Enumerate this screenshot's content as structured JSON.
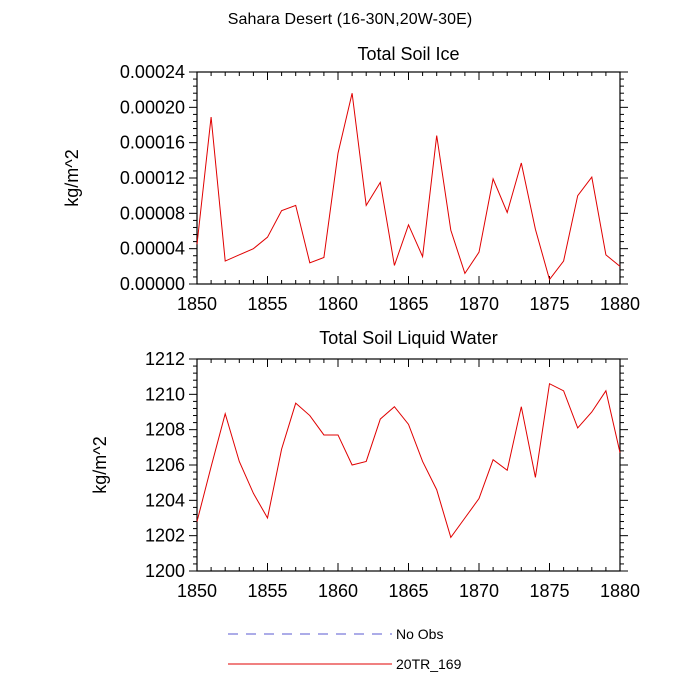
{
  "figure": {
    "title": "Sahara Desert (16-30N,20W-30E)"
  },
  "legend": {
    "items": [
      {
        "label": "No Obs",
        "color": "#5a5ad2",
        "style": "dashed"
      },
      {
        "label": "20TR_169",
        "color": "#e00000",
        "style": "solid"
      }
    ]
  },
  "chart_data": [
    {
      "type": "line",
      "title": "Total Soil Ice",
      "xlabel": "",
      "ylabel": "kg/m^2",
      "xlim": [
        1850,
        1880
      ],
      "ylim": [
        0,
        0.00024
      ],
      "xticks": [
        1850,
        1855,
        1860,
        1865,
        1870,
        1875,
        1880
      ],
      "xtick_labels": [
        "1850",
        "1855",
        "1860",
        "1865",
        "1870",
        "1875",
        "1880"
      ],
      "yticks": [
        0,
        4e-05,
        8e-05,
        0.00012,
        0.00016,
        0.0002,
        0.00024
      ],
      "ytick_labels": [
        "0.00000",
        "0.00004",
        "0.00008",
        "0.00012",
        "0.00016",
        "0.00020",
        "0.00024"
      ],
      "grid": false,
      "series": [
        {
          "name": "20TR_169",
          "color": "#e00000",
          "x": [
            1850,
            1851,
            1852,
            1853,
            1854,
            1855,
            1856,
            1857,
            1858,
            1859,
            1860,
            1861,
            1862,
            1863,
            1864,
            1865,
            1866,
            1867,
            1868,
            1869,
            1870,
            1871,
            1872,
            1873,
            1874,
            1875,
            1876,
            1877,
            1878,
            1879,
            1880
          ],
          "values": [
            4.5e-05,
            0.000189,
            2.6e-05,
            3.3e-05,
            4e-05,
            5.3e-05,
            8.3e-05,
            8.9e-05,
            2.4e-05,
            3e-05,
            0.000148,
            0.000216,
            8.9e-05,
            0.000115,
            2.1e-05,
            6.7e-05,
            3.1e-05,
            0.000168,
            6.1e-05,
            1.2e-05,
            3.6e-05,
            0.000119,
            8.1e-05,
            0.000137,
            6.2e-05,
            5e-06,
            2.6e-05,
            0.0001,
            0.000121,
            3.3e-05,
            2e-05
          ]
        }
      ]
    },
    {
      "type": "line",
      "title": "Total Soil Liquid Water",
      "xlabel": "",
      "ylabel": "kg/m^2",
      "xlim": [
        1850,
        1880
      ],
      "ylim": [
        1200,
        1212
      ],
      "xticks": [
        1850,
        1855,
        1860,
        1865,
        1870,
        1875,
        1880
      ],
      "xtick_labels": [
        "1850",
        "1855",
        "1860",
        "1865",
        "1870",
        "1875",
        "1880"
      ],
      "yticks": [
        1200,
        1202,
        1204,
        1206,
        1208,
        1210,
        1212
      ],
      "ytick_labels": [
        "1200",
        "1202",
        "1204",
        "1206",
        "1208",
        "1210",
        "1212"
      ],
      "grid": false,
      "series": [
        {
          "name": "20TR_169",
          "color": "#e00000",
          "x": [
            1850,
            1851,
            1852,
            1853,
            1854,
            1855,
            1856,
            1857,
            1858,
            1859,
            1860,
            1861,
            1862,
            1863,
            1864,
            1865,
            1866,
            1867,
            1868,
            1869,
            1870,
            1871,
            1872,
            1873,
            1874,
            1875,
            1876,
            1877,
            1878,
            1879,
            1880
          ],
          "values": [
            1202.8,
            1205.9,
            1208.9,
            1206.2,
            1204.4,
            1203.0,
            1206.9,
            1209.5,
            1208.8,
            1207.7,
            1207.7,
            1206.0,
            1206.2,
            1208.6,
            1209.3,
            1208.3,
            1206.2,
            1204.6,
            1201.9,
            1203.0,
            1204.1,
            1206.3,
            1205.7,
            1209.3,
            1205.3,
            1210.6,
            1210.2,
            1208.1,
            1209.0,
            1210.2,
            1206.7
          ]
        }
      ]
    }
  ]
}
